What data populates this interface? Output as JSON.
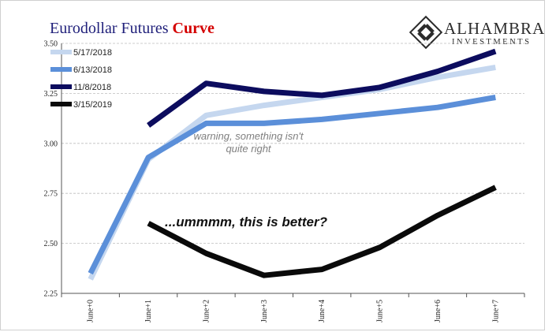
{
  "chart_data": {
    "type": "line",
    "title": "Eurodollar Futures",
    "title_emphasis": "Curve",
    "categories": [
      "June+0",
      "June+1",
      "June+2",
      "June+3",
      "June+4",
      "June+5",
      "June+6",
      "June+7"
    ],
    "y_ticks": [
      "2.25",
      "2.50",
      "2.75",
      "3.00",
      "3.25",
      "3.50"
    ],
    "ylim": [
      2.25,
      3.5
    ],
    "grid": true,
    "legend_position": "top-left",
    "series": [
      {
        "name": "5/17/2018",
        "color": "#c5d7ef",
        "values": [
          2.32,
          2.92,
          3.14,
          3.19,
          3.23,
          3.27,
          3.33,
          3.38
        ]
      },
      {
        "name": "6/13/2018",
        "color": "#5b8fd9",
        "values": [
          2.35,
          2.93,
          3.1,
          3.1,
          3.12,
          3.15,
          3.18,
          3.23
        ]
      },
      {
        "name": "11/8/2018",
        "color": "#0c0c5e",
        "values": [
          null,
          3.09,
          3.3,
          3.26,
          3.24,
          3.28,
          3.36,
          3.46
        ]
      },
      {
        "name": "3/15/2019",
        "color": "#0a0a0a",
        "values": [
          null,
          2.6,
          2.45,
          2.34,
          2.37,
          2.48,
          2.64,
          2.78
        ]
      }
    ],
    "annotations": [
      {
        "lines": [
          "warning, something isn't",
          "quite right"
        ]
      },
      {
        "lines": [
          "...ummmm, this is better?"
        ]
      }
    ]
  },
  "logo": {
    "name": "ALHAMBRA",
    "subtitle": "INVESTMENTS",
    "color": "#2b2b2b"
  },
  "colors": {
    "title": "#1f1f7a",
    "title_emphasis": "#d40000",
    "grid": "#bdbdbd",
    "axis": "#555555",
    "frame": "#d0d0d0"
  }
}
